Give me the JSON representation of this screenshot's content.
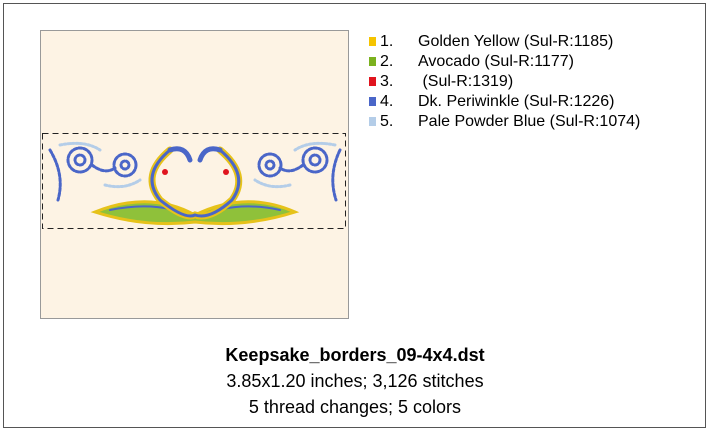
{
  "design": {
    "colors": [
      {
        "number": "1.",
        "name": "Golden Yellow (Sul-R:1185)",
        "color": "#f5c400"
      },
      {
        "number": "2.",
        "name": "Avocado (Sul-R:1177)",
        "color": "#7bb11e"
      },
      {
        "number": "3.",
        "name": " (Sul-R:1319)",
        "color": "#e0141e"
      },
      {
        "number": "4.",
        "name": "Dk. Periwinkle (Sul-R:1226)",
        "color": "#4a66c8"
      },
      {
        "number": "5.",
        "name": "Pale Powder Blue (Sul-R:1074)",
        "color": "#b4cde8"
      }
    ],
    "filename": "Keepsake_borders_09-4x4.dst",
    "size_line": "3.85x1.20 inches; 3,126 stitches",
    "changes_line": "5 thread changes; 5 colors"
  }
}
